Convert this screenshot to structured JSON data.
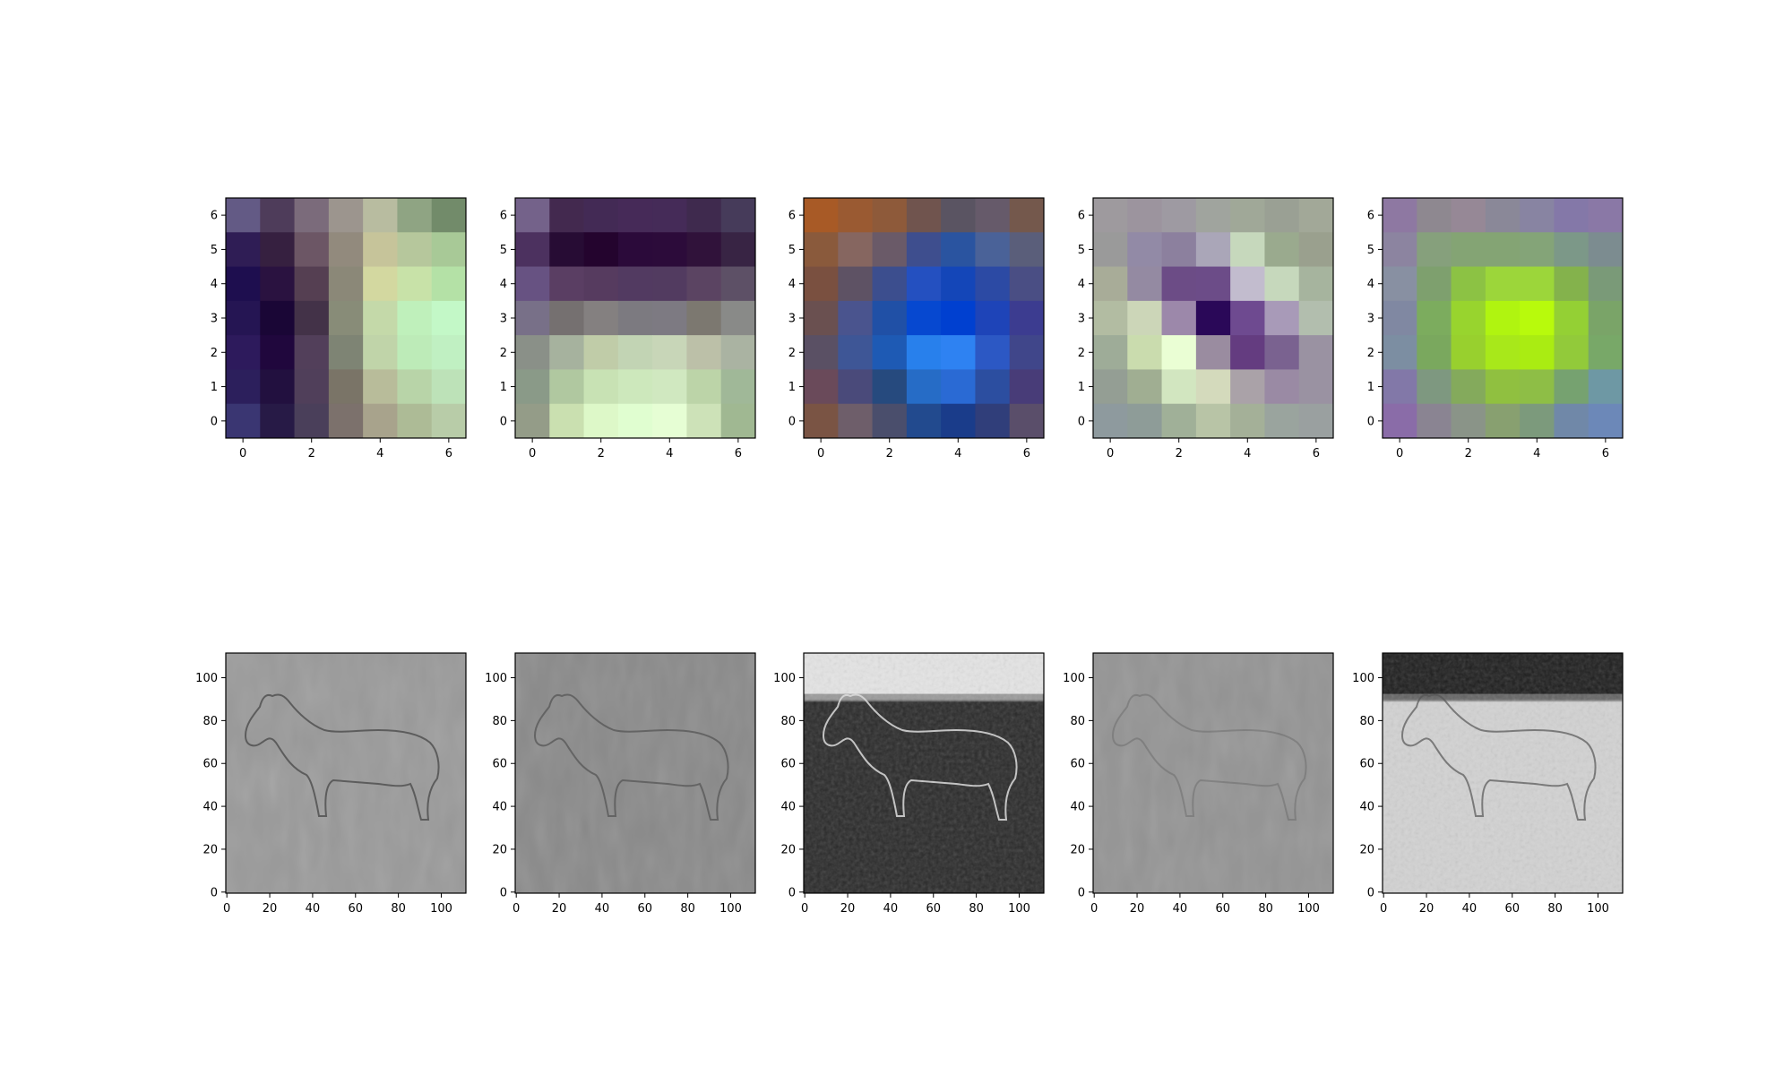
{
  "chart_data": [
    {
      "type": "heatmap",
      "panel": "filter-1",
      "xticks": [
        "0",
        "2",
        "4",
        "6"
      ],
      "yticks": [
        "0",
        "1",
        "2",
        "3",
        "4",
        "5",
        "6"
      ],
      "xlim": [
        -0.5,
        6.5
      ],
      "ylim": [
        6.5,
        -0.5
      ],
      "pixels": [
        [
          "#635a85",
          "#4e3c5a",
          "#7b6b7b",
          "#9c958e",
          "#b8bca0",
          "#8fa483",
          "#728b6a"
        ],
        [
          "#2f1d55",
          "#362040",
          "#6c5665",
          "#928a7d",
          "#c6c49a",
          "#b6c79c",
          "#a8c997"
        ],
        [
          "#1e0e4f",
          "#2a1240",
          "#553f52",
          "#8b8878",
          "#d3d8a0",
          "#c8e2a8",
          "#b4e1a6"
        ],
        [
          "#251553",
          "#1a0636",
          "#433248",
          "#888c78",
          "#c4d9a9",
          "#bff0bb",
          "#c3f8c7"
        ],
        [
          "#2d1a5c",
          "#20073d",
          "#523f5a",
          "#7e8474",
          "#c0d4a9",
          "#bdebb8",
          "#c0f0c2"
        ],
        [
          "#2c1f5c",
          "#22103f",
          "#503f5a",
          "#7a7467",
          "#b8bc9a",
          "#b8d4a8",
          "#bde2b8"
        ],
        [
          "#3a3672",
          "#271a46",
          "#4a3f5a",
          "#7c716c",
          "#a8a38c",
          "#adbb96",
          "#b8cca8"
        ]
      ]
    },
    {
      "type": "heatmap",
      "panel": "filter-2",
      "xticks": [
        "0",
        "2",
        "4",
        "6"
      ],
      "yticks": [
        "0",
        "1",
        "2",
        "3",
        "4",
        "5",
        "6"
      ],
      "xlim": [
        -0.5,
        6.5
      ],
      "ylim": [
        6.5,
        -0.5
      ],
      "pixels": [
        [
          "#74628a",
          "#43294f",
          "#432a55",
          "#462a58",
          "#452b58",
          "#3f2a4e",
          "#463b5a"
        ],
        [
          "#4c315f",
          "#270c34",
          "#24042e",
          "#2b0a3a",
          "#2c0b3a",
          "#30123a",
          "#382444"
        ],
        [
          "#675282",
          "#5a3e63",
          "#563b5f",
          "#523a61",
          "#523b60",
          "#5b4462",
          "#5d5066"
        ],
        [
          "#787088",
          "#757070",
          "#848080",
          "#7c7a80",
          "#7d7a82",
          "#7c7870",
          "#898a88"
        ],
        [
          "#8a9088",
          "#a6b29e",
          "#c0cca8",
          "#c2d4b4",
          "#c8d6b8",
          "#bcc0a8",
          "#aab3a2"
        ],
        [
          "#8a9a88",
          "#b0c8a0",
          "#c8e2b4",
          "#cde8bc",
          "#d0e8c0",
          "#bcd4a8",
          "#a0b898"
        ],
        [
          "#949c88",
          "#cae0b0",
          "#ddf8c8",
          "#e0fed0",
          "#e6fed4",
          "#cde2b8",
          "#a0b892"
        ]
      ]
    },
    {
      "type": "heatmap",
      "panel": "filter-3",
      "xticks": [
        "0",
        "2",
        "4",
        "6"
      ],
      "yticks": [
        "0",
        "1",
        "2",
        "3",
        "4",
        "5",
        "6"
      ],
      "xlim": [
        -0.5,
        6.5
      ],
      "ylim": [
        6.5,
        -0.5
      ],
      "pixels": [
        [
          "#a85a26",
          "#9a5a32",
          "#8e5a3a",
          "#70544e",
          "#5a5462",
          "#665a6a",
          "#74584c"
        ],
        [
          "#8a5a3c",
          "#866660",
          "#6a5a68",
          "#3e4e8e",
          "#2a54a0",
          "#4a6298",
          "#5a5e7a"
        ],
        [
          "#7a5040",
          "#5e5264",
          "#3c4e8e",
          "#2450c0",
          "#1446b8",
          "#2c4aa4",
          "#4a4e84"
        ],
        [
          "#6a5050",
          "#4a548e",
          "#2050a6",
          "#0648d0",
          "#0040d0",
          "#1e44b8",
          "#3c3c90"
        ],
        [
          "#5a5064",
          "#3e5696",
          "#1e5ab4",
          "#2880ec",
          "#2e82f2",
          "#2c58c4",
          "#40468a"
        ],
        [
          "#6a4a5a",
          "#4a4a7a",
          "#264a7e",
          "#266cc6",
          "#2a6ad4",
          "#2c4ea0",
          "#483c78"
        ],
        [
          "#7a5444",
          "#6e5e6a",
          "#4a4e6c",
          "#224a8e",
          "#1a3c8a",
          "#303e7a",
          "#5a4e6a"
        ]
      ]
    },
    {
      "type": "heatmap",
      "panel": "filter-4",
      "xticks": [
        "0",
        "2",
        "4",
        "6"
      ],
      "yticks": [
        "0",
        "1",
        "2",
        "3",
        "4",
        "5",
        "6"
      ],
      "xlim": [
        -0.5,
        6.5
      ],
      "ylim": [
        6.5,
        -0.5
      ],
      "pixels": [
        [
          "#9e9a9e",
          "#9c949e",
          "#9e9aa2",
          "#a0a49e",
          "#a0a898",
          "#9aa094",
          "#a2a898"
        ],
        [
          "#9a9a9a",
          "#928aa6",
          "#8c809e",
          "#aaa6b8",
          "#c6d8bc",
          "#9aaa8e",
          "#9aa08e"
        ],
        [
          "#a8ac98",
          "#948aa2",
          "#6c4c86",
          "#6c4c88",
          "#c2bcce",
          "#c6d8bc",
          "#a6b49e"
        ],
        [
          "#b2bca2",
          "#ccd6b8",
          "#9c88aa",
          "#2a0858",
          "#6e4a90",
          "#a89ab8",
          "#b2beae"
        ],
        [
          "#9eac98",
          "#cadcae",
          "#eafed4",
          "#9a8ca0",
          "#643c80",
          "#7a6290",
          "#9a92a2"
        ],
        [
          "#949e94",
          "#a0ae92",
          "#d2e6c0",
          "#d4dabc",
          "#aaa2a8",
          "#9a8aa4",
          "#9a92a2"
        ],
        [
          "#8e9a9e",
          "#8e9c98",
          "#a0b098",
          "#b8c4a6",
          "#a4b098",
          "#9aa49e",
          "#9aa0a0"
        ]
      ]
    },
    {
      "type": "heatmap",
      "panel": "filter-5",
      "xticks": [
        "0",
        "2",
        "4",
        "6"
      ],
      "yticks": [
        "0",
        "1",
        "2",
        "3",
        "4",
        "5",
        "6"
      ],
      "xlim": [
        -0.5,
        6.5
      ],
      "ylim": [
        6.5,
        -0.5
      ],
      "pixels": [
        [
          "#8e78a2",
          "#8e8890",
          "#968896",
          "#8a8898",
          "#8884a2",
          "#8478a8",
          "#8a78a6"
        ],
        [
          "#8c84a0",
          "#86a07c",
          "#84a474",
          "#84a474",
          "#84a478",
          "#7c9888",
          "#7c8c90"
        ],
        [
          "#8890a2",
          "#7ea06e",
          "#8cc244",
          "#9cd63a",
          "#9cd63a",
          "#84b24c",
          "#7a9a78"
        ],
        [
          "#8088a2",
          "#7cac5e",
          "#98d42e",
          "#b0f410",
          "#b8fa0c",
          "#94d034",
          "#7aa468"
        ],
        [
          "#7c8ea2",
          "#7aa85e",
          "#98d02e",
          "#a8e81a",
          "#aaec12",
          "#92ca3a",
          "#78a868"
        ],
        [
          "#8278a8",
          "#7e9880",
          "#84aa5c",
          "#90c040",
          "#8ebe46",
          "#76a270",
          "#6e98a4"
        ],
        [
          "#8a6ca8",
          "#8a8492",
          "#8a9488",
          "#88a070",
          "#7c9a7c",
          "#7088a8",
          "#6c88b8"
        ]
      ]
    },
    {
      "type": "heatmap",
      "panel": "feature-map-1",
      "xticks": [
        "0",
        "20",
        "40",
        "60",
        "80",
        "100"
      ],
      "yticks": [
        "0",
        "20",
        "40",
        "60",
        "80",
        "100"
      ],
      "xlim": [
        -0.5,
        111.5
      ],
      "ylim": [
        111.5,
        -0.5
      ]
    },
    {
      "type": "heatmap",
      "panel": "feature-map-2",
      "xticks": [
        "0",
        "20",
        "40",
        "60",
        "80",
        "100"
      ],
      "yticks": [
        "0",
        "20",
        "40",
        "60",
        "80",
        "100"
      ],
      "xlim": [
        -0.5,
        111.5
      ],
      "ylim": [
        111.5,
        -0.5
      ]
    },
    {
      "type": "heatmap",
      "panel": "feature-map-3",
      "xticks": [
        "0",
        "20",
        "40",
        "60",
        "80",
        "100"
      ],
      "yticks": [
        "0",
        "20",
        "40",
        "60",
        "80",
        "100"
      ],
      "xlim": [
        -0.5,
        111.5
      ],
      "ylim": [
        111.5,
        -0.5
      ]
    },
    {
      "type": "heatmap",
      "panel": "feature-map-4",
      "xticks": [
        "0",
        "20",
        "40",
        "60",
        "80",
        "100"
      ],
      "yticks": [
        "0",
        "20",
        "40",
        "60",
        "80",
        "100"
      ],
      "xlim": [
        -0.5,
        111.5
      ],
      "ylim": [
        111.5,
        -0.5
      ]
    },
    {
      "type": "heatmap",
      "panel": "feature-map-5",
      "xticks": [
        "0",
        "20",
        "40",
        "60",
        "80",
        "100"
      ],
      "yticks": [
        "0",
        "20",
        "40",
        "60",
        "80",
        "100"
      ],
      "xlim": [
        -0.5,
        111.5
      ],
      "ylim": [
        111.5,
        -0.5
      ]
    }
  ]
}
